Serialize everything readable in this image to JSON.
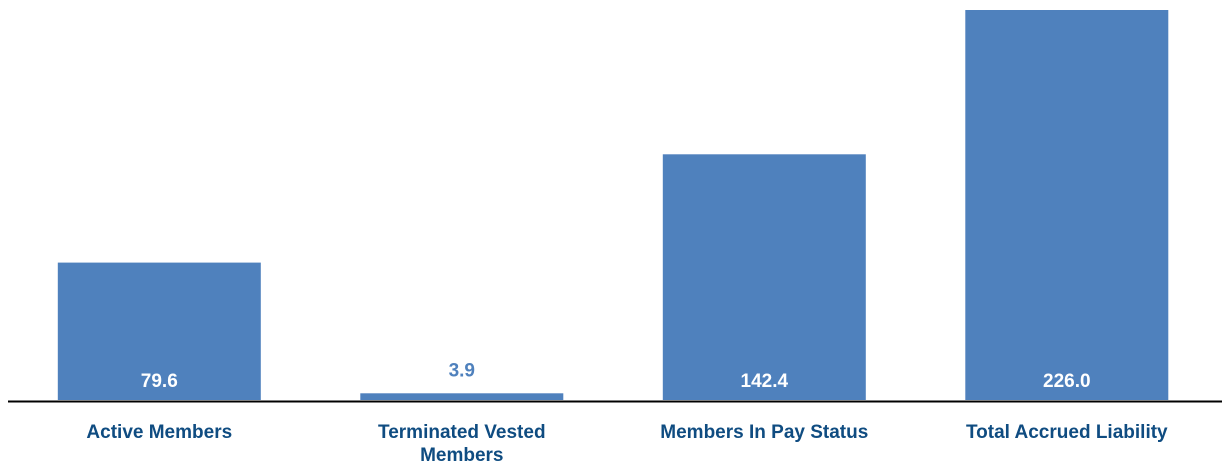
{
  "chart_data": {
    "type": "bar",
    "categories": [
      [
        "Active Members"
      ],
      [
        "Terminated Vested",
        "Members"
      ],
      [
        "Members In Pay Status"
      ],
      [
        "Total Accrued Liability"
      ]
    ],
    "values": [
      79.6,
      3.9,
      142.4,
      226.0
    ],
    "value_labels": [
      "79.6",
      "3.9",
      "142.4",
      "226.0"
    ],
    "ylim": [
      0,
      226.0
    ],
    "grid": false,
    "legend": "none",
    "colors": {
      "bar": "#4f81bd",
      "label_inside": "#ffffff",
      "label_outside": "#4f81bd",
      "category_text": "#0f4c81",
      "axis": "#000000"
    }
  }
}
